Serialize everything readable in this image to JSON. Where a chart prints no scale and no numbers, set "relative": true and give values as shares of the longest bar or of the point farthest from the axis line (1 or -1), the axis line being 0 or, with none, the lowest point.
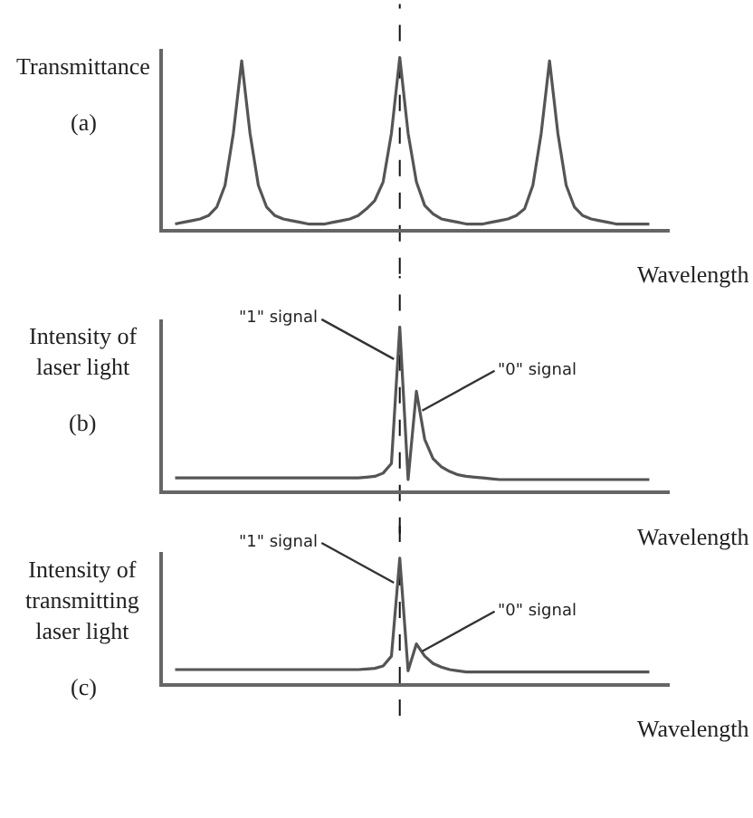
{
  "chart_data": [
    {
      "type": "line",
      "relative": true,
      "ylabel": "Transmittance",
      "xlabel": "Wavelength",
      "annotations": [
        "(a)"
      ],
      "color": "#555555",
      "categories": [
        null,
        null,
        null,
        null,
        null,
        null,
        null,
        null,
        null,
        null,
        null,
        null,
        null,
        null,
        null,
        null,
        null,
        null,
        null,
        null,
        null,
        null,
        null,
        null,
        null,
        null,
        null,
        null,
        null,
        null,
        null,
        null,
        null,
        null,
        null,
        null,
        null,
        null,
        null,
        null,
        null,
        null,
        null,
        null,
        null,
        null,
        null,
        null,
        null,
        null,
        null,
        null,
        null,
        null,
        null,
        null,
        null,
        null
      ],
      "values": [
        0.01,
        0.02,
        0.03,
        0.04,
        0.06,
        0.11,
        0.24,
        0.55,
        0.98,
        0.55,
        0.24,
        0.11,
        0.06,
        0.04,
        0.03,
        0.02,
        0.01,
        0.01,
        0.01,
        0.02,
        0.03,
        0.04,
        0.06,
        0.1,
        0.15,
        0.26,
        0.55,
        1,
        0.55,
        0.26,
        0.12,
        0.07,
        0.04,
        0.03,
        0.02,
        0.01,
        0.01,
        0.01,
        0.02,
        0.03,
        0.04,
        0.06,
        0.1,
        0.24,
        0.55,
        0.98,
        0.55,
        0.24,
        0.11,
        0.06,
        0.04,
        0.03,
        0.02,
        0.01,
        0.01,
        0.01,
        0.01,
        0.01
      ],
      "ref_lines": [
        {
          "axis": "x",
          "line_style": "dashed",
          "color": "#111111"
        }
      ]
    },
    {
      "type": "line",
      "relative": true,
      "ylabel": "Intensity of\nlaser light",
      "xlabel": "Wavelength",
      "annotations": [
        "(b)",
        "\"1\" signal",
        "\"0\" signal"
      ],
      "color": "#555555",
      "categories": [
        null,
        null,
        null,
        null,
        null,
        null,
        null,
        null,
        null,
        null,
        null,
        null,
        null,
        null,
        null,
        null,
        null,
        null,
        null,
        null,
        null,
        null,
        null,
        null,
        null,
        null,
        null,
        null,
        null,
        null,
        null,
        null,
        null,
        null,
        null,
        null,
        null,
        null,
        null,
        null,
        null,
        null,
        null,
        null,
        null,
        null,
        null,
        null,
        null,
        null,
        null,
        null,
        null,
        null,
        null,
        null,
        null,
        null
      ],
      "values": [
        0.06,
        0.06,
        0.06,
        0.06,
        0.06,
        0.06,
        0.06,
        0.06,
        0.06,
        0.06,
        0.06,
        0.06,
        0.06,
        0.06,
        0.06,
        0.06,
        0.06,
        0.06,
        0.06,
        0.06,
        0.06,
        0.06,
        0.06,
        0.065,
        0.07,
        0.09,
        0.15,
        1,
        0.05,
        0.6,
        0.3,
        0.18,
        0.13,
        0.1,
        0.08,
        0.07,
        0.065,
        0.06,
        0.055,
        0.05,
        0.05,
        0.05,
        0.05,
        0.05,
        0.05,
        0.05,
        0.05,
        0.05,
        0.05,
        0.05,
        0.05,
        0.05,
        0.05,
        0.05,
        0.05,
        0.05,
        0.05,
        0.05
      ],
      "ref_lines": [
        {
          "axis": "x",
          "line_style": "dashed",
          "color": "#111111"
        }
      ]
    },
    {
      "type": "line",
      "relative": true,
      "ylabel": "Intensity of\ntransmitting\nlaser light",
      "xlabel": "Wavelength",
      "annotations": [
        "(c)",
        "\"1\" signal",
        "\"0\" signal"
      ],
      "color": "#555555",
      "categories": [
        null,
        null,
        null,
        null,
        null,
        null,
        null,
        null,
        null,
        null,
        null,
        null,
        null,
        null,
        null,
        null,
        null,
        null,
        null,
        null,
        null,
        null,
        null,
        null,
        null,
        null,
        null,
        null,
        null,
        null,
        null,
        null,
        null,
        null,
        null,
        null,
        null,
        null,
        null,
        null,
        null,
        null,
        null,
        null,
        null,
        null,
        null,
        null,
        null,
        null,
        null,
        null,
        null,
        null,
        null,
        null,
        null,
        null
      ],
      "values": [
        0.09,
        0.09,
        0.09,
        0.09,
        0.09,
        0.09,
        0.09,
        0.09,
        0.09,
        0.09,
        0.09,
        0.09,
        0.09,
        0.09,
        0.09,
        0.09,
        0.09,
        0.09,
        0.09,
        0.09,
        0.09,
        0.09,
        0.09,
        0.095,
        0.1,
        0.12,
        0.2,
        1,
        0.08,
        0.3,
        0.2,
        0.14,
        0.11,
        0.09,
        0.08,
        0.07,
        0.07,
        0.07,
        0.07,
        0.07,
        0.07,
        0.07,
        0.07,
        0.07,
        0.07,
        0.07,
        0.07,
        0.07,
        0.07,
        0.07,
        0.07,
        0.07,
        0.07,
        0.07,
        0.07,
        0.07,
        0.07,
        0.07
      ],
      "ref_lines": [
        {
          "axis": "x",
          "line_style": "dashed",
          "color": "#111111"
        }
      ]
    }
  ]
}
